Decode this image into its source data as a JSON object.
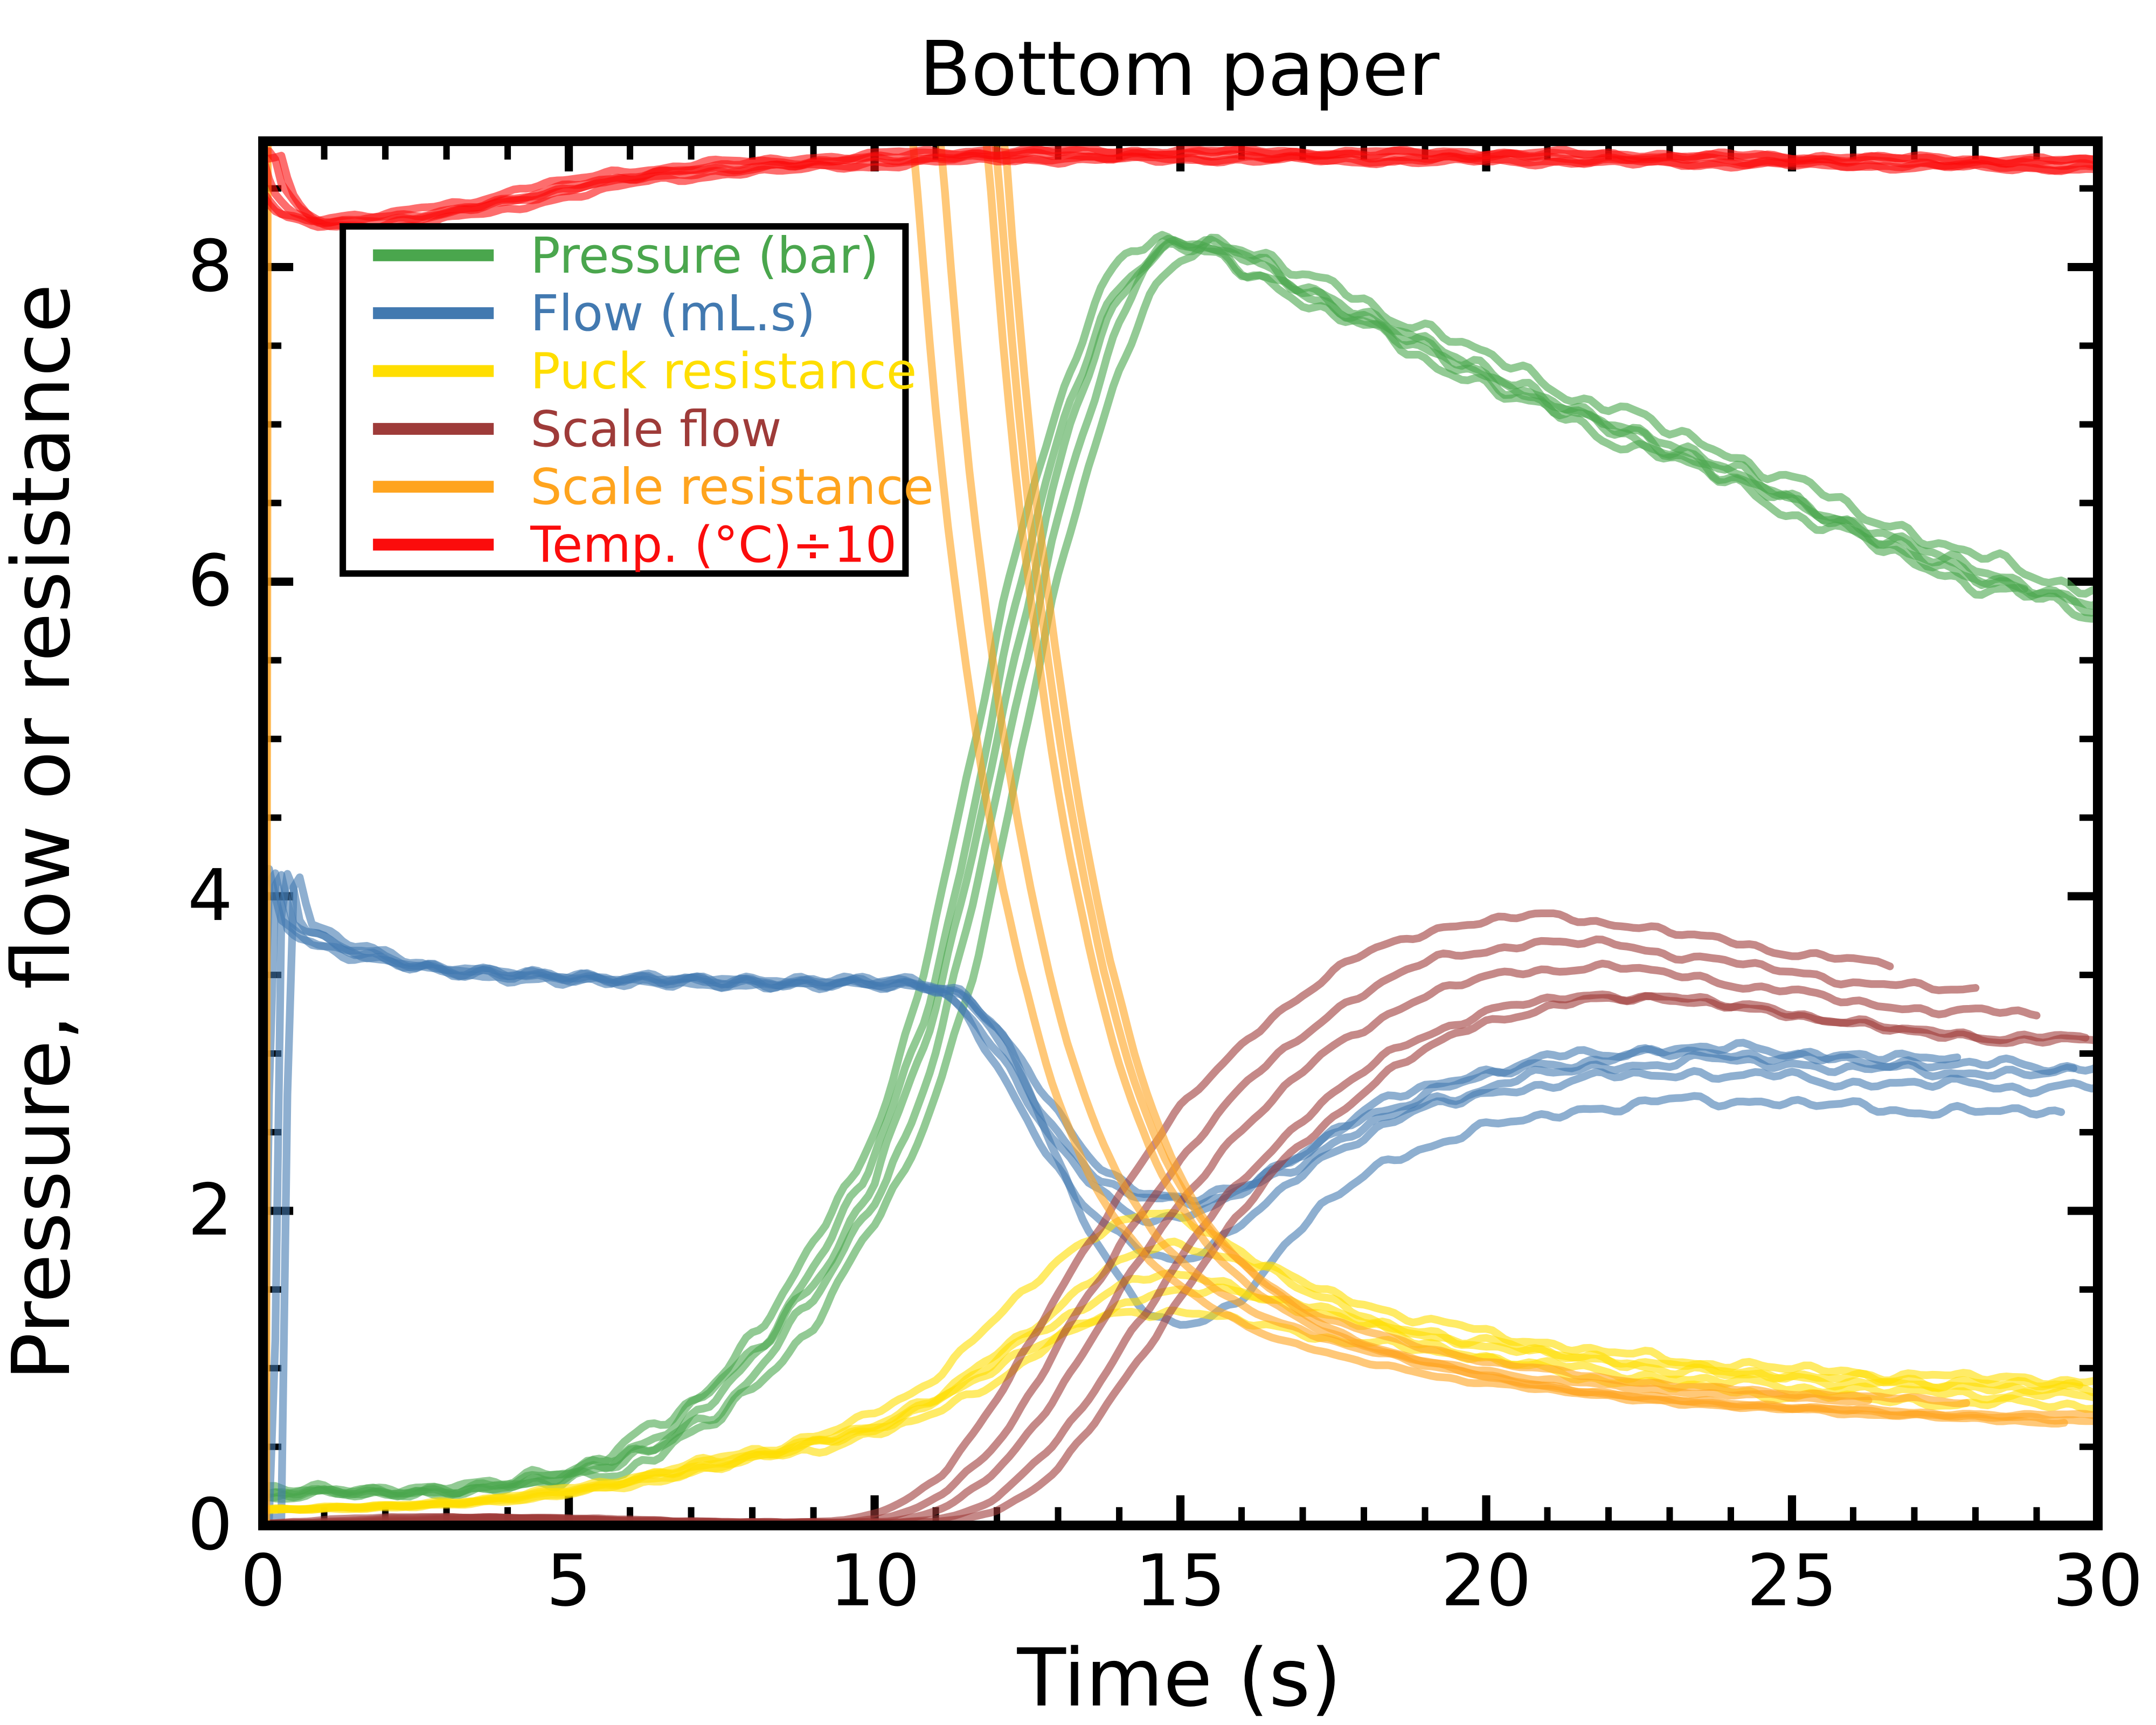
{
  "title": "Bottom paper",
  "axes": {
    "xlabel": "Time (s)",
    "ylabel": "Pressure, flow or resistance",
    "xlim": [
      0,
      30
    ],
    "ylim": [
      0,
      8.8
    ],
    "xticks_major": [
      0,
      5,
      10,
      15,
      20,
      25,
      30
    ],
    "xtick_minor_step": 1,
    "yticks_major": [
      0,
      2,
      4,
      6,
      8
    ],
    "ytick_minor_step": 0.5,
    "grid": false
  },
  "legend": {
    "position": "upper-left",
    "entries": [
      {
        "label": "Pressure (bar)",
        "color": "#4aa64d"
      },
      {
        "label": "Flow (mL.s)",
        "color": "#4279b0"
      },
      {
        "label": "Puck resistance",
        "color": "#ffde00"
      },
      {
        "label": "Scale flow",
        "color": "#9e3b39"
      },
      {
        "label": "Scale resistance",
        "color": "#ffa41e"
      },
      {
        "label": "Temp. (°C)÷10",
        "color": "#fb0c0c"
      }
    ]
  },
  "style": {
    "background": "#ffffff",
    "spine_color": "#000000",
    "trace_opacity": 0.6,
    "trace_width": 3.6,
    "n_traces_per_series": 5
  },
  "chart_data": {
    "type": "line",
    "title": "Bottom paper",
    "xlabel": "Time (s)",
    "ylabel": "Pressure, flow or resistance",
    "xlim": [
      0,
      30
    ],
    "ylim": [
      0,
      8.8
    ],
    "legend_position": "upper left",
    "description": "Five repeated espresso-shot traces per measured quantity, semi-transparent, overlaid versus time in seconds.",
    "series": [
      {
        "name": "Pressure (bar)",
        "color": "#4aa64d",
        "amp": 0.055,
        "base": [
          [
            0,
            0.18
          ],
          [
            0.5,
            0.22
          ],
          [
            1.5,
            0.21
          ],
          [
            3,
            0.22
          ],
          [
            4,
            0.26
          ],
          [
            5,
            0.33
          ],
          [
            6,
            0.45
          ],
          [
            7,
            0.68
          ],
          [
            8,
            1.05
          ],
          [
            9,
            1.55
          ],
          [
            10,
            2.2
          ],
          [
            10.5,
            2.7
          ],
          [
            11,
            3.3
          ],
          [
            11.5,
            4.1
          ],
          [
            12,
            5.0
          ],
          [
            12.5,
            5.9
          ],
          [
            13,
            6.7
          ],
          [
            13.5,
            7.3
          ],
          [
            14,
            7.8
          ],
          [
            14.5,
            8.05
          ],
          [
            15,
            8.15
          ],
          [
            15.5,
            8.12
          ],
          [
            16,
            8.05
          ],
          [
            17,
            7.85
          ],
          [
            18,
            7.68
          ],
          [
            19,
            7.5
          ],
          [
            20,
            7.32
          ],
          [
            21,
            7.15
          ],
          [
            22,
            7.0
          ],
          [
            23,
            6.85
          ],
          [
            24,
            6.7
          ],
          [
            25,
            6.52
          ],
          [
            26,
            6.35
          ],
          [
            27,
            6.2
          ],
          [
            28,
            6.05
          ],
          [
            29,
            5.95
          ],
          [
            30,
            5.85
          ]
        ],
        "traces": [
          {
            "dt": -0.35,
            "end": 30,
            "off": 0.05
          },
          {
            "dt": -0.15,
            "end": 30,
            "off": -0.05
          },
          {
            "dt": 0,
            "end": 28.8,
            "off": 0
          },
          {
            "dt": 0.2,
            "end": 30,
            "off": 0.08
          },
          {
            "dt": 0.45,
            "end": 29.9,
            "off": -0.08
          }
        ]
      },
      {
        "name": "Flow (mL.s)",
        "color": "#4279b0",
        "amp": 0.035,
        "base": [
          [
            0,
            0.05
          ],
          [
            0.15,
            3.88
          ],
          [
            0.5,
            3.82
          ],
          [
            1,
            3.7
          ],
          [
            2,
            3.6
          ],
          [
            3,
            3.53
          ],
          [
            4,
            3.5
          ],
          [
            5,
            3.48
          ],
          [
            6,
            3.47
          ],
          [
            7,
            3.46
          ],
          [
            8,
            3.45
          ],
          [
            9,
            3.45
          ],
          [
            10,
            3.45
          ],
          [
            10.8,
            3.44
          ],
          [
            11.3,
            3.38
          ],
          [
            11.8,
            3.2
          ],
          [
            12.3,
            2.92
          ],
          [
            12.8,
            2.62
          ],
          [
            13.3,
            2.38
          ],
          [
            13.8,
            2.22
          ],
          [
            14.3,
            2.12
          ],
          [
            15,
            2.08
          ],
          [
            15.7,
            2.12
          ],
          [
            16.3,
            2.22
          ],
          [
            17,
            2.35
          ],
          [
            18,
            2.55
          ],
          [
            19,
            2.7
          ],
          [
            20,
            2.8
          ],
          [
            21,
            2.88
          ],
          [
            22,
            2.92
          ],
          [
            23,
            2.95
          ],
          [
            24,
            2.95
          ],
          [
            25,
            2.93
          ],
          [
            26,
            2.9
          ],
          [
            27,
            2.89
          ],
          [
            28,
            2.88
          ],
          [
            29,
            2.87
          ],
          [
            30,
            2.87
          ]
        ],
        "traces": [
          {
            "dt": 0,
            "end": 30,
            "dip": 0.05,
            "off": 0.05
          },
          {
            "dt": 0.15,
            "end": 29.6,
            "dip": 0,
            "off": 0
          },
          {
            "dt": -0.2,
            "end": 30,
            "dip": 0.35,
            "off": -0.08
          },
          {
            "dt": 0.3,
            "end": 29.4,
            "dip": 0.75,
            "off": -0.25
          },
          {
            "dt": -0.1,
            "end": 27.7,
            "dip": 0.15,
            "off": 0.08
          }
        ]
      },
      {
        "name": "Puck resistance",
        "color": "#ffde00",
        "amp": 0.03,
        "base": [
          [
            0,
            0.1
          ],
          [
            1,
            0.11
          ],
          [
            2,
            0.12
          ],
          [
            3,
            0.14
          ],
          [
            4,
            0.17
          ],
          [
            5,
            0.22
          ],
          [
            6,
            0.28
          ],
          [
            7,
            0.36
          ],
          [
            8,
            0.44
          ],
          [
            9,
            0.52
          ],
          [
            10,
            0.62
          ],
          [
            10.5,
            0.7
          ],
          [
            11,
            0.8
          ],
          [
            11.5,
            0.92
          ],
          [
            12,
            1.05
          ],
          [
            12.5,
            1.18
          ],
          [
            13,
            1.3
          ],
          [
            13.5,
            1.42
          ],
          [
            14,
            1.52
          ],
          [
            14.5,
            1.58
          ],
          [
            15,
            1.58
          ],
          [
            15.5,
            1.55
          ],
          [
            16,
            1.5
          ],
          [
            17,
            1.4
          ],
          [
            18,
            1.3
          ],
          [
            19,
            1.22
          ],
          [
            20,
            1.16
          ],
          [
            21,
            1.1
          ],
          [
            22,
            1.05
          ],
          [
            23,
            1.01
          ],
          [
            24,
            0.98
          ],
          [
            25,
            0.95
          ],
          [
            26,
            0.93
          ],
          [
            27,
            0.91
          ],
          [
            28,
            0.9
          ],
          [
            29,
            0.89
          ],
          [
            30,
            0.88
          ]
        ],
        "traces": [
          {
            "dt": 0,
            "end": 30,
            "hump": 1.0,
            "off": 0
          },
          {
            "dt": -0.3,
            "end": 30,
            "hump": 0.87,
            "off": -0.06
          },
          {
            "dt": 0.2,
            "end": 30,
            "hump": 1.12,
            "off": 0.04
          },
          {
            "dt": -0.15,
            "end": 30,
            "hump": 1.27,
            "off": -0.12
          },
          {
            "dt": 0.3,
            "end": 29.7,
            "hump": 0.95,
            "off": -0.02
          }
        ]
      },
      {
        "name": "Scale flow",
        "color": "#9e3b39",
        "amp": 0.025,
        "base": [
          [
            0,
            0.01
          ],
          [
            1,
            0.02
          ],
          [
            2,
            0.04
          ],
          [
            3,
            0.05
          ],
          [
            4,
            0.05
          ],
          [
            5,
            0.04
          ],
          [
            6,
            0.03
          ],
          [
            7,
            0.02
          ],
          [
            8,
            0.02
          ],
          [
            9,
            0.02
          ],
          [
            9.5,
            0.02
          ],
          [
            10,
            0.03
          ],
          [
            10.5,
            0.06
          ],
          [
            11,
            0.13
          ],
          [
            11.5,
            0.26
          ],
          [
            12,
            0.45
          ],
          [
            12.5,
            0.7
          ],
          [
            13,
            1.0
          ],
          [
            13.5,
            1.32
          ],
          [
            14,
            1.62
          ],
          [
            14.5,
            1.92
          ],
          [
            15,
            2.18
          ],
          [
            15.5,
            2.42
          ],
          [
            16,
            2.62
          ],
          [
            16.5,
            2.8
          ],
          [
            17,
            2.96
          ],
          [
            17.5,
            3.1
          ],
          [
            18,
            3.22
          ],
          [
            18.5,
            3.32
          ],
          [
            19,
            3.4
          ],
          [
            19.5,
            3.46
          ],
          [
            20,
            3.5
          ],
          [
            21,
            3.55
          ],
          [
            22,
            3.55
          ],
          [
            23,
            3.5
          ],
          [
            24,
            3.44
          ],
          [
            25,
            3.38
          ],
          [
            26,
            3.32
          ],
          [
            27,
            3.28
          ],
          [
            27.5,
            3.26
          ]
        ],
        "traces": [
          {
            "dt": -0.6,
            "end": 26.6,
            "scale": 1.06,
            "off": 0.1
          },
          {
            "dt": -0.2,
            "end": 28.0,
            "scale": 1.0,
            "off": 0.15
          },
          {
            "dt": 0.2,
            "end": 29.0,
            "scale": 0.97,
            "off": 0.1
          },
          {
            "dt": 0.7,
            "end": 29.8,
            "scale": 0.92,
            "off": 0.1
          },
          {
            "dt": 1.1,
            "end": 30,
            "scale": 0.9,
            "off": 0.15
          }
        ]
      },
      {
        "name": "Scale resistance",
        "color": "#ffa41e",
        "amp": 0.012,
        "spike": [
          [
            0.04,
            0
          ],
          [
            0.07,
            9.5
          ]
        ],
        "base": [
          [
            11.85,
            8.9
          ],
          [
            12.0,
            8.2
          ],
          [
            12.2,
            7.3
          ],
          [
            12.4,
            6.5
          ],
          [
            12.7,
            5.6
          ],
          [
            13.0,
            4.8
          ],
          [
            13.3,
            4.15
          ],
          [
            13.6,
            3.6
          ],
          [
            14.0,
            3.0
          ],
          [
            14.4,
            2.55
          ],
          [
            14.8,
            2.2
          ],
          [
            15.2,
            1.95
          ],
          [
            15.6,
            1.75
          ],
          [
            16,
            1.6
          ],
          [
            16.5,
            1.45
          ],
          [
            17,
            1.33
          ],
          [
            17.5,
            1.24
          ],
          [
            18,
            1.17
          ],
          [
            19,
            1.06
          ],
          [
            20,
            0.98
          ],
          [
            21,
            0.92
          ],
          [
            22,
            0.87
          ],
          [
            23,
            0.83
          ],
          [
            24,
            0.8
          ],
          [
            25,
            0.78
          ],
          [
            26,
            0.76
          ],
          [
            27,
            0.74
          ],
          [
            28,
            0.72
          ],
          [
            29,
            0.71
          ],
          [
            30,
            0.7
          ]
        ],
        "traces": [
          {
            "dt": -1.25,
            "end": 30,
            "off": 0
          },
          {
            "dt": -0.8,
            "end": 26.3,
            "off": 0.05
          },
          {
            "dt": -0.05,
            "end": 30,
            "off": -0.03
          },
          {
            "dt": 0.1,
            "end": 27.9,
            "off": 0.06
          },
          {
            "dt": 0.25,
            "end": 29.5,
            "off": -0.05
          }
        ]
      },
      {
        "name": "Temp. (°C)÷10",
        "color": "#fb0c0c",
        "amp": 0.018,
        "base": [
          [
            0,
            8.72
          ],
          [
            0.15,
            8.5
          ],
          [
            0.5,
            8.34
          ],
          [
            1,
            8.28
          ],
          [
            1.6,
            8.29
          ],
          [
            2.2,
            8.3
          ],
          [
            3,
            8.35
          ],
          [
            4,
            8.42
          ],
          [
            5,
            8.5
          ],
          [
            6,
            8.57
          ],
          [
            7,
            8.61
          ],
          [
            8,
            8.64
          ],
          [
            9,
            8.66
          ],
          [
            10,
            8.68
          ],
          [
            11,
            8.7
          ],
          [
            12,
            8.71
          ],
          [
            14,
            8.71
          ],
          [
            16,
            8.71
          ],
          [
            18,
            8.7
          ],
          [
            20,
            8.7
          ],
          [
            22,
            8.69
          ],
          [
            24,
            8.68
          ],
          [
            26,
            8.67
          ],
          [
            28,
            8.66
          ],
          [
            30,
            8.65
          ]
        ],
        "traces": [
          {
            "dt": -0.3,
            "end": 30,
            "coff": 0.03
          },
          {
            "dt": -0.15,
            "end": 30,
            "coff": -0.02
          },
          {
            "dt": 0,
            "end": 30,
            "coff": 0
          },
          {
            "dt": 0.15,
            "end": 30,
            "coff": 0.02
          },
          {
            "dt": 0.3,
            "end": 30,
            "coff": -0.03
          }
        ]
      }
    ]
  }
}
